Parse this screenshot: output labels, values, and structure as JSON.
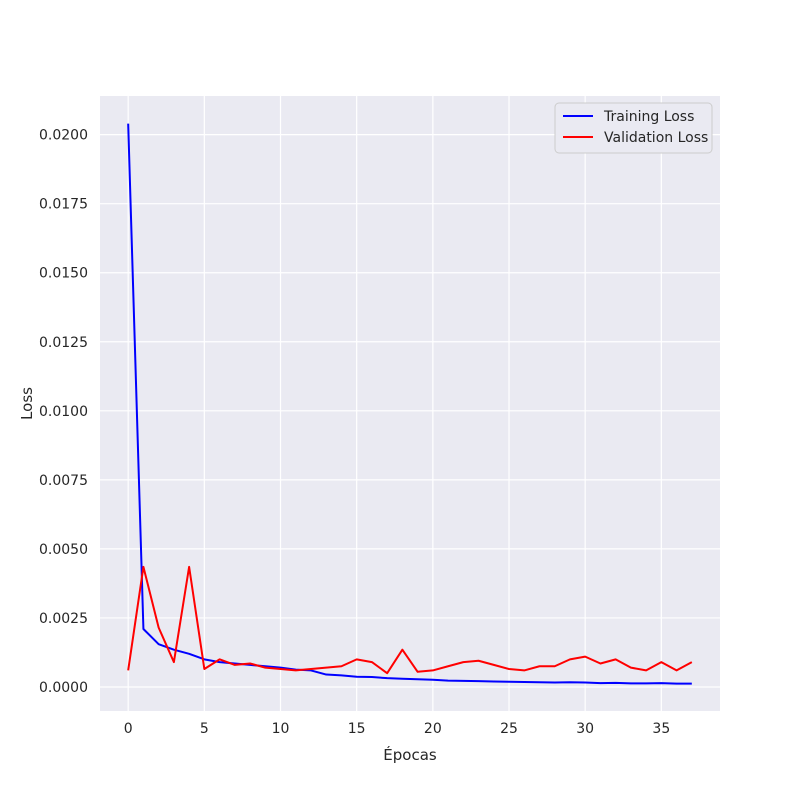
{
  "chart_data": {
    "type": "line",
    "title": "",
    "xlabel": "Épocas",
    "ylabel": "Loss",
    "xlim": [
      -1.85,
      38.85
    ],
    "ylim": [
      -0.00087,
      0.0214
    ],
    "xticks": [
      0,
      5,
      10,
      15,
      20,
      25,
      30,
      35
    ],
    "xtick_labels": [
      "0",
      "5",
      "10",
      "15",
      "20",
      "25",
      "30",
      "35"
    ],
    "yticks": [
      0.0,
      0.0025,
      0.005,
      0.0075,
      0.01,
      0.0125,
      0.015,
      0.0175,
      0.02
    ],
    "ytick_labels": [
      "0.0000",
      "0.0025",
      "0.0050",
      "0.0075",
      "0.0100",
      "0.0125",
      "0.0150",
      "0.0175",
      "0.0200"
    ],
    "grid": true,
    "legend_position": "top-right",
    "x": [
      0,
      1,
      2,
      3,
      4,
      5,
      6,
      7,
      8,
      9,
      10,
      11,
      12,
      13,
      14,
      15,
      16,
      17,
      18,
      19,
      20,
      21,
      22,
      23,
      24,
      25,
      26,
      27,
      28,
      29,
      30,
      31,
      32,
      33,
      34,
      35,
      36,
      37
    ],
    "series": [
      {
        "name": "Training Loss",
        "color": "#0000ff",
        "values": [
          0.0204,
          0.0021,
          0.00155,
          0.00135,
          0.0012,
          0.001,
          0.0009,
          0.00085,
          0.0008,
          0.00075,
          0.0007,
          0.00063,
          0.0006,
          0.00045,
          0.00042,
          0.00037,
          0.00036,
          0.00032,
          0.0003,
          0.00028,
          0.00026,
          0.00023,
          0.00022,
          0.00021,
          0.0002,
          0.00019,
          0.00018,
          0.00017,
          0.00016,
          0.00017,
          0.00016,
          0.00014,
          0.00015,
          0.00013,
          0.00013,
          0.00014,
          0.00012,
          0.00012
        ]
      },
      {
        "name": "Validation Loss",
        "color": "#ff0000",
        "values": [
          0.0006,
          0.00435,
          0.00215,
          0.0009,
          0.00435,
          0.00065,
          0.001,
          0.0008,
          0.00085,
          0.0007,
          0.00065,
          0.0006,
          0.00065,
          0.0007,
          0.00075,
          0.001,
          0.0009,
          0.0005,
          0.00135,
          0.00055,
          0.0006,
          0.00075,
          0.0009,
          0.00095,
          0.0008,
          0.00065,
          0.0006,
          0.00075,
          0.00075,
          0.001,
          0.0011,
          0.00085,
          0.001,
          0.0007,
          0.0006,
          0.0009,
          0.0006,
          0.0009
        ]
      }
    ]
  },
  "colors": {
    "plot_background": "#eaeaf2",
    "grid": "#ffffff",
    "text": "#262626"
  }
}
